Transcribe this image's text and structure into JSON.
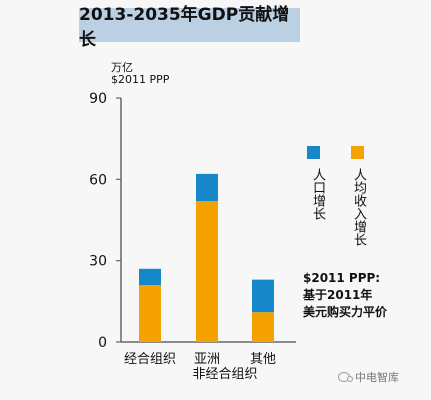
{
  "title": "2013-2035年GDP贡献增长",
  "unit_lines": [
    "万亿",
    "$2011 PPP"
  ],
  "legend": {
    "population_label": "人口增长",
    "income_label": "人均收入增长"
  },
  "note_lines": [
    "$2011 PPP:",
    "基于2011年",
    "美元购买力平价"
  ],
  "watermark": "中电智库",
  "colors": {
    "population": "#1687c8",
    "income": "#f5a200",
    "axis": "#666666"
  },
  "chart_data": {
    "type": "bar",
    "stacked": true,
    "categories": [
      "经合组织",
      "亚洲",
      "其他"
    ],
    "subcategory_label": "非经合组织",
    "series": [
      {
        "name": "人均收入增长",
        "values": [
          21,
          52,
          11
        ]
      },
      {
        "name": "人口增长",
        "values": [
          6,
          10,
          12
        ]
      }
    ],
    "ylim": [
      0,
      90
    ],
    "yticks": [
      0,
      30,
      60,
      90
    ],
    "ylabel": "万亿 $2011 PPP",
    "xlabel": "",
    "legend_position": "right",
    "grid": false
  }
}
